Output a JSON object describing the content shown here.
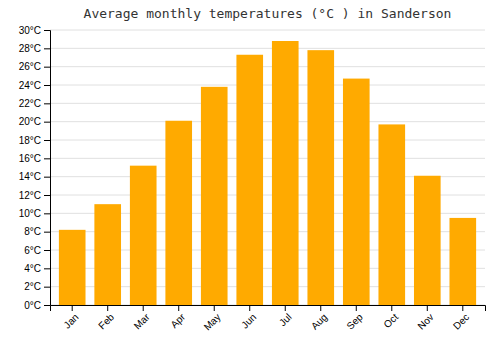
{
  "chart_data": {
    "type": "bar",
    "title": "Average monthly temperatures (°C ) in Sanderson",
    "categories": [
      "Jan",
      "Feb",
      "Mar",
      "Apr",
      "May",
      "Jun",
      "Jul",
      "Aug",
      "Sep",
      "Oct",
      "Nov",
      "Dec"
    ],
    "values": [
      8.2,
      11.0,
      15.2,
      20.1,
      23.8,
      27.3,
      28.8,
      27.8,
      24.7,
      19.7,
      14.1,
      9.5
    ],
    "color": "#FFAA00",
    "ylim": [
      0,
      30
    ],
    "yticks": [
      {
        "value": 0,
        "label": "0°C"
      },
      {
        "value": 2,
        "label": "2°C"
      },
      {
        "value": 4,
        "label": "4°C"
      },
      {
        "value": 6,
        "label": "6°C"
      },
      {
        "value": 8,
        "label": "8°C"
      },
      {
        "value": 10,
        "label": "10°C"
      },
      {
        "value": 12,
        "label": "12°C"
      },
      {
        "value": 14,
        "label": "14°C"
      },
      {
        "value": 16,
        "label": "16°C"
      },
      {
        "value": 18,
        "label": "18°C"
      },
      {
        "value": 20,
        "label": "20°C"
      },
      {
        "value": 22,
        "label": "22°C"
      },
      {
        "value": 24,
        "label": "24°C"
      },
      {
        "value": 26,
        "label": "26°C"
      },
      {
        "value": 28,
        "label": "28°C"
      },
      {
        "value": 30,
        "label": "30°C"
      }
    ],
    "grid": true
  }
}
